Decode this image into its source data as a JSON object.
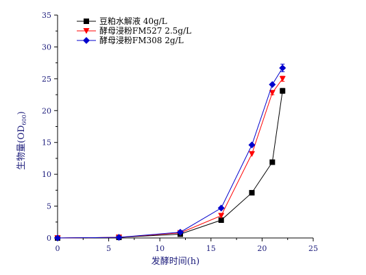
{
  "chart_data": {
    "type": "line",
    "xlabel": "发酵时间(h)",
    "ylabel": "生物量(OD",
    "ylabel_sub": "600",
    "ylabel_close": ")",
    "xlim": [
      0,
      25
    ],
    "ylim": [
      0,
      35
    ],
    "x_ticks": [
      0,
      5,
      10,
      15,
      20,
      25
    ],
    "y_ticks": [
      0,
      5,
      10,
      15,
      20,
      25,
      30,
      35
    ],
    "grid": false,
    "legend_position": "top-left",
    "series": [
      {
        "name": "豆粕水解液 40g/L",
        "color": "#000000",
        "marker": "square",
        "x": [
          0,
          6,
          12,
          16,
          19,
          21,
          22
        ],
        "y": [
          0,
          0.1,
          0.6,
          2.8,
          7.1,
          11.9,
          23.1
        ],
        "err": [
          0,
          0,
          0,
          0,
          0,
          0,
          0.4
        ]
      },
      {
        "name": "酵母浸粉FM527 2.5g/L",
        "color": "#ff0000",
        "marker": "triangle-down",
        "x": [
          0,
          6,
          12,
          16,
          19,
          21,
          22
        ],
        "y": [
          0,
          0.1,
          0.8,
          3.5,
          13.2,
          22.8,
          25.0
        ],
        "err": [
          0,
          0,
          0,
          0,
          0,
          0.3,
          0.4
        ]
      },
      {
        "name": "酵母浸粉FM308 2g/L",
        "color": "#0000cc",
        "marker": "diamond",
        "x": [
          0,
          6,
          12,
          16,
          19,
          21,
          22
        ],
        "y": [
          0,
          0.1,
          0.9,
          4.7,
          14.6,
          24.1,
          26.7
        ],
        "err": [
          0,
          0,
          0,
          0,
          0,
          0,
          0.6
        ]
      }
    ]
  }
}
